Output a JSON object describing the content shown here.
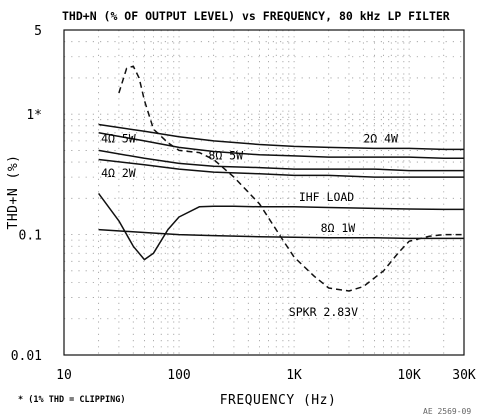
{
  "chart_data": {
    "type": "line",
    "title": "THD+N (% OF OUTPUT LEVEL) vs FREQUENCY, 80 kHz LP FILTER",
    "xlabel": "FREQUENCY (Hz)",
    "ylabel": "THD+N (%)",
    "x_scale": "log",
    "y_scale": "log",
    "xlim": [
      10,
      30000
    ],
    "ylim": [
      0.01,
      5
    ],
    "x_ticks": [
      {
        "value": 10,
        "label": "10"
      },
      {
        "value": 100,
        "label": "100"
      },
      {
        "value": 1000,
        "label": "1K"
      },
      {
        "value": 10000,
        "label": "10K"
      },
      {
        "value": 30000,
        "label": "30K"
      }
    ],
    "y_ticks": [
      {
        "value": 5,
        "label": "5"
      },
      {
        "value": 1,
        "label": "1*"
      },
      {
        "value": 0.1,
        "label": "0.1"
      },
      {
        "value": 0.01,
        "label": "0.01"
      }
    ],
    "grid": true,
    "footnote": "* (1% THD = CLIPPING)",
    "figure_code": "AE 2569-09",
    "series": [
      {
        "name": "2Ω 4W",
        "style": "solid",
        "label_at": {
          "x": 4000,
          "y": 0.58
        },
        "x": [
          20,
          50,
          100,
          200,
          500,
          1000,
          2000,
          5000,
          10000,
          20000,
          30000
        ],
        "y": [
          0.82,
          0.72,
          0.65,
          0.6,
          0.56,
          0.54,
          0.53,
          0.52,
          0.52,
          0.51,
          0.51
        ]
      },
      {
        "name": "4Ω 5W",
        "style": "solid",
        "label_at": {
          "x": 21,
          "y": 0.58
        },
        "x": [
          20,
          50,
          100,
          200,
          500,
          1000,
          2000,
          5000,
          10000,
          20000,
          30000
        ],
        "y": [
          0.7,
          0.6,
          0.53,
          0.49,
          0.46,
          0.45,
          0.44,
          0.44,
          0.44,
          0.43,
          0.43
        ]
      },
      {
        "name": "8Ω 5W",
        "style": "solid",
        "label_at": {
          "x": 180,
          "y": 0.42
        },
        "x": [
          20,
          50,
          100,
          200,
          500,
          1000,
          2000,
          5000,
          10000,
          20000,
          30000
        ],
        "y": [
          0.5,
          0.43,
          0.39,
          0.37,
          0.36,
          0.35,
          0.35,
          0.35,
          0.34,
          0.34,
          0.34
        ]
      },
      {
        "name": "4Ω 2W",
        "style": "solid",
        "label_at": {
          "x": 21,
          "y": 0.3
        },
        "x": [
          20,
          50,
          100,
          200,
          500,
          1000,
          2000,
          5000,
          10000,
          20000,
          30000
        ],
        "y": [
          0.42,
          0.38,
          0.35,
          0.33,
          0.32,
          0.31,
          0.31,
          0.3,
          0.3,
          0.3,
          0.3
        ]
      },
      {
        "name": "IHF LOAD",
        "style": "solid",
        "label_at": {
          "x": 1100,
          "y": 0.19
        },
        "x": [
          20,
          30,
          40,
          50,
          60,
          80,
          100,
          150,
          200,
          300,
          500,
          1000,
          2000,
          5000,
          10000,
          20000,
          30000
        ],
        "y": [
          0.22,
          0.13,
          0.08,
          0.062,
          0.07,
          0.11,
          0.14,
          0.17,
          0.172,
          0.172,
          0.17,
          0.17,
          0.168,
          0.165,
          0.163,
          0.162,
          0.162
        ]
      },
      {
        "name": "8Ω 1W",
        "style": "solid",
        "label_at": {
          "x": 1700,
          "y": 0.105
        },
        "x": [
          20,
          50,
          100,
          200,
          500,
          1000,
          2000,
          5000,
          10000,
          20000,
          30000
        ],
        "y": [
          0.11,
          0.104,
          0.1,
          0.098,
          0.096,
          0.095,
          0.094,
          0.094,
          0.093,
          0.093,
          0.093
        ]
      },
      {
        "name": "SPKR 2.83V",
        "style": "dashed",
        "label_at": {
          "x": 900,
          "y": 0.021
        },
        "x": [
          30,
          35,
          40,
          45,
          50,
          60,
          80,
          100,
          150,
          200,
          300,
          500,
          800,
          1000,
          1500,
          2000,
          3000,
          4000,
          6000,
          8000,
          10000,
          15000,
          20000,
          30000
        ],
        "y": [
          1.5,
          2.4,
          2.5,
          2.0,
          1.3,
          0.75,
          0.58,
          0.5,
          0.48,
          0.42,
          0.3,
          0.18,
          0.09,
          0.065,
          0.045,
          0.036,
          0.034,
          0.037,
          0.05,
          0.07,
          0.088,
          0.097,
          0.1,
          0.1
        ]
      }
    ]
  }
}
